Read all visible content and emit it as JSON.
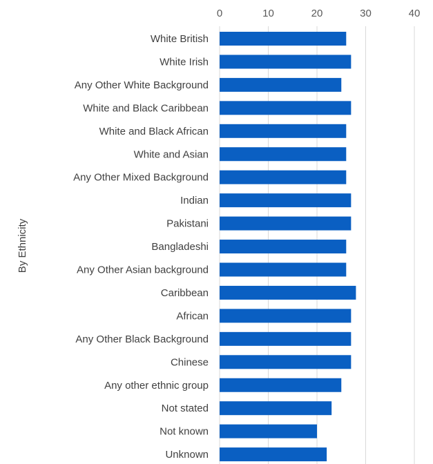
{
  "chart_data": {
    "type": "bar",
    "orientation": "horizontal",
    "ylabel": "By Ethnicity",
    "xlabel": "",
    "xlim": [
      0,
      40
    ],
    "xticks": [
      0,
      10,
      20,
      30,
      40
    ],
    "x_axis_position": "top",
    "grid": true,
    "bar_color": "#0a5fc2",
    "categories": [
      "White British",
      "White Irish",
      "Any Other White Background",
      "White and Black Caribbean",
      "White and Black African",
      "White and Asian",
      "Any Other Mixed Background",
      "Indian",
      "Pakistani",
      "Bangladeshi",
      "Any Other Asian background",
      "Caribbean",
      "African",
      "Any Other Black Background",
      "Chinese",
      "Any other ethnic group",
      "Not stated",
      "Not known",
      "Unknown"
    ],
    "values": [
      26,
      27,
      25,
      27,
      26,
      26,
      26,
      27,
      27,
      26,
      26,
      28,
      27,
      27,
      27,
      25,
      23,
      20,
      22
    ]
  }
}
